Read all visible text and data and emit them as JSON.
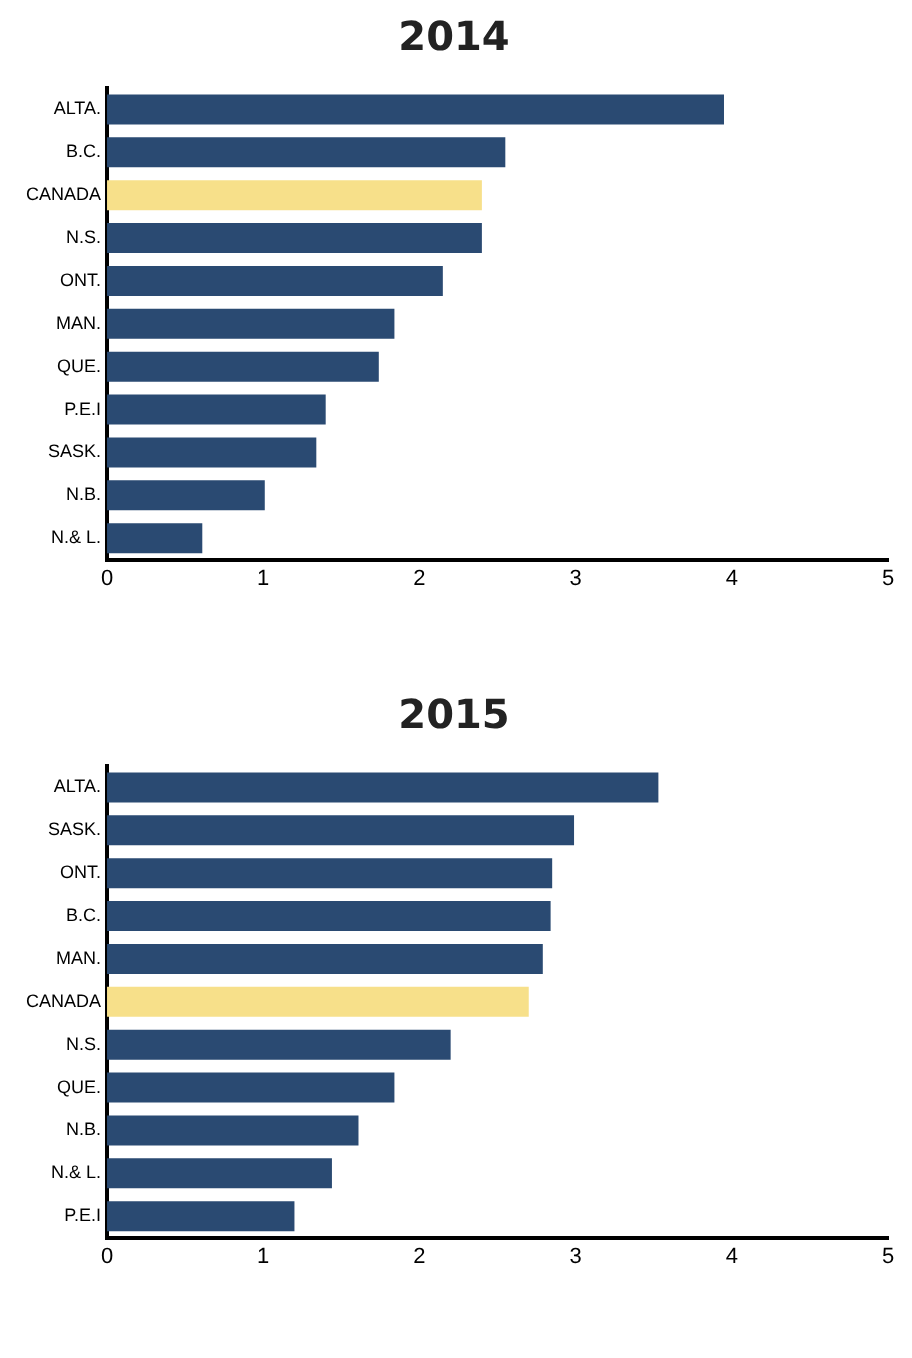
{
  "chart_data": [
    {
      "type": "bar",
      "orientation": "horizontal",
      "title": "2014",
      "categories": [
        "ALTA.",
        "B.C.",
        "CANADA",
        "N.S.",
        "ONT.",
        "MAN.",
        "QUE.",
        "P.E.I",
        "SASK.",
        "N.B.",
        "N.& L."
      ],
      "values": [
        3.95,
        2.55,
        2.4,
        2.4,
        2.15,
        1.84,
        1.74,
        1.4,
        1.34,
        1.01,
        0.61
      ],
      "colors": [
        "#2a4a72",
        "#2a4a72",
        "#f7e08a",
        "#2a4a72",
        "#2a4a72",
        "#2a4a72",
        "#2a4a72",
        "#2a4a72",
        "#2a4a72",
        "#2a4a72",
        "#2a4a72"
      ],
      "xlim": [
        0,
        5
      ],
      "xticks": [
        0,
        1,
        2,
        3,
        4,
        5
      ],
      "grid": false,
      "legend": false
    },
    {
      "type": "bar",
      "orientation": "horizontal",
      "title": "2015",
      "categories": [
        "ALTA.",
        "SASK.",
        "ONT.",
        "B.C.",
        "MAN.",
        "CANADA",
        "N.S.",
        "QUE.",
        "N.B.",
        "N.& L.",
        "P.E.I"
      ],
      "values": [
        3.53,
        2.99,
        2.85,
        2.84,
        2.79,
        2.7,
        2.2,
        1.84,
        1.61,
        1.44,
        1.2
      ],
      "colors": [
        "#2a4a72",
        "#2a4a72",
        "#2a4a72",
        "#2a4a72",
        "#2a4a72",
        "#f7e08a",
        "#2a4a72",
        "#2a4a72",
        "#2a4a72",
        "#2a4a72",
        "#2a4a72"
      ],
      "xlim": [
        0,
        5
      ],
      "xticks": [
        0,
        1,
        2,
        3,
        4,
        5
      ],
      "grid": false,
      "legend": false
    }
  ]
}
